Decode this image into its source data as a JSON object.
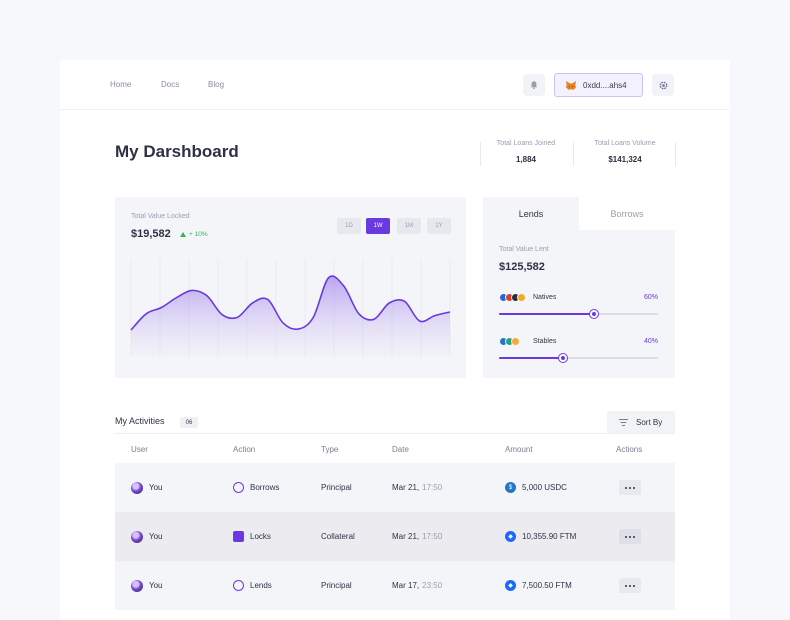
{
  "nav": {
    "links": [
      "Home",
      "Docs",
      "Blog"
    ]
  },
  "wallet": {
    "address": "0xdd....ahs4"
  },
  "page": {
    "title": "My Darshboard"
  },
  "stats": [
    {
      "label": "Total Loans Joined",
      "value": "1,884"
    },
    {
      "label": "Total Loans Volume",
      "value": "$141,324"
    }
  ],
  "tvl": {
    "label": "Total Value Locked",
    "value": "$19,582",
    "change": "+ 10%",
    "ranges": [
      "1D",
      "1W",
      "1M",
      "1Y"
    ],
    "active_range": "1W"
  },
  "chart_data": {
    "type": "area",
    "title": "",
    "xlabel": "",
    "ylabel": "",
    "ylim": [
      0,
      100
    ],
    "values": [
      30,
      48,
      55,
      66,
      74,
      68,
      47,
      44,
      60,
      64,
      38,
      31,
      44,
      88,
      79,
      48,
      42,
      60,
      62,
      40,
      46,
      50
    ]
  },
  "lend": {
    "tabs": [
      "Lends",
      "Borrows"
    ],
    "active_tab": "Lends",
    "label": "Total Value Lent",
    "value": "$125,582",
    "allocations": [
      {
        "name": "Natives",
        "pct": "60%",
        "fraction": 0.6,
        "coins": [
          "#2a66d9",
          "#d6402f",
          "#2b2d42",
          "#f0a92c"
        ]
      },
      {
        "name": "Stables",
        "pct": "40%",
        "fraction": 0.4,
        "coins": [
          "#2775ca",
          "#26a17b",
          "#f5ac37"
        ]
      }
    ]
  },
  "activities": {
    "title": "My Activities",
    "count": "06",
    "sort_label": "Sort By",
    "columns": [
      "User",
      "Action",
      "Type",
      "Date",
      "Amount",
      "Actions"
    ],
    "rows": [
      {
        "user": "You",
        "action": "Borrows",
        "type": "Principal",
        "date": "Mar 21,",
        "time": "17:50",
        "amount": "5,000 USDC",
        "token_icon": "usdc-icon"
      },
      {
        "user": "You",
        "action": "Locks",
        "type": "Collateral",
        "date": "Mar 21,",
        "time": "17:50",
        "amount": "10,355.90 FTM",
        "token_icon": "ftm-icon"
      },
      {
        "user": "You",
        "action": "Lends",
        "type": "Principal",
        "date": "Mar 17,",
        "time": "23:50",
        "amount": "7,500.50 FTM",
        "token_icon": "ftm-icon"
      }
    ]
  },
  "colors": {
    "accent": "#6a3ae0",
    "positive": "#33b35a",
    "panel": "#f4f5f8"
  }
}
